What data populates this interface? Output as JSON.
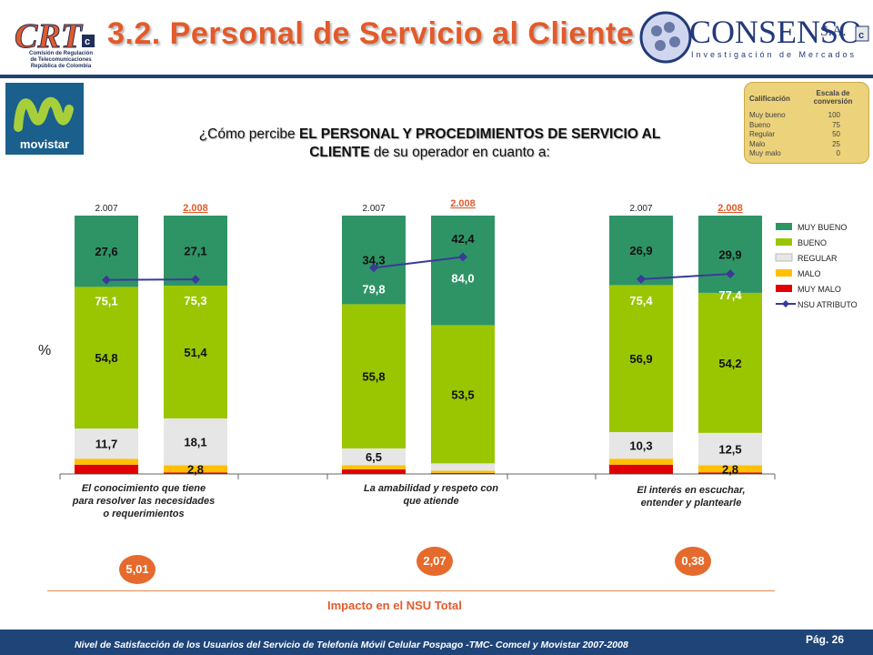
{
  "header": {
    "title": "3.2. Personal de Servicio al Cliente",
    "crt_logo_text": "CRT",
    "crt_subtitle": [
      "Comisión de Regulación",
      "de Telecomunicaciones",
      "República de Colombia"
    ],
    "consenso_name": "CONSENSO",
    "consenso_suffix": "S.A.",
    "consenso_tagline": "Investigación de Mercados",
    "movistar_label": "movistar"
  },
  "question": {
    "pre": "¿Cómo percibe ",
    "bold": "EL PERSONAL Y PROCEDIMIENTOS DE SERVICIO AL CLIENTE",
    "post": " de su operador en cuanto a:"
  },
  "scale": {
    "col1": "Calificación",
    "col2a": "Escala de",
    "col2b": "conversión",
    "rows": [
      {
        "label": "Muy bueno",
        "value": "100"
      },
      {
        "label": "Bueno",
        "value": "75"
      },
      {
        "label": "Regular",
        "value": "50"
      },
      {
        "label": "Malo",
        "value": "25"
      },
      {
        "label": "Muy malo",
        "value": "0"
      }
    ]
  },
  "chart_data": {
    "type": "bar",
    "stacked": true,
    "ylabel": "%",
    "ylim": [
      0,
      100
    ],
    "year_labels": [
      "2.007",
      "2.008"
    ],
    "groups": [
      {
        "name": "El conocimiento que tiene para resolver las necesidades o requerimientos",
        "label_lines": [
          "El conocimiento que tiene",
          "para resolver las necesidades",
          "o requerimientos"
        ],
        "bars": [
          {
            "year": "2.007",
            "muy_malo": 3.6,
            "malo": 2.3,
            "regular": 11.7,
            "bueno": 54.8,
            "muy_bueno": 27.6,
            "nsu": 75.1
          },
          {
            "year": "2.008",
            "muy_malo": 0.6,
            "malo": 2.8,
            "regular": 18.1,
            "bueno": 51.4,
            "muy_bueno": 27.1,
            "nsu": 75.3
          }
        ]
      },
      {
        "name": "La amabilidad y respeto con que atiende",
        "label_lines": [
          "La amabilidad y respeto con",
          "que atiende"
        ],
        "bars": [
          {
            "year": "2.007",
            "muy_malo": 1.8,
            "malo": 1.6,
            "regular": 6.5,
            "bueno": 55.8,
            "muy_bueno": 34.3,
            "nsu": 79.8
          },
          {
            "year": "2.008",
            "muy_malo": 0.4,
            "malo": 0.9,
            "regular": 2.8,
            "bueno": 53.5,
            "muy_bueno": 42.4,
            "nsu": 84.0
          }
        ]
      },
      {
        "name": "El interés en escuchar, entender y plantearle",
        "label_lines": [
          "El interés en escuchar,",
          "entender y plantearle"
        ],
        "bars": [
          {
            "year": "2.007",
            "muy_malo": 3.6,
            "malo": 2.3,
            "regular": 10.3,
            "bueno": 56.9,
            "muy_bueno": 26.9,
            "nsu": 75.4
          },
          {
            "year": "2.008",
            "muy_malo": 0.6,
            "malo": 2.8,
            "regular": 12.5,
            "bueno": 54.2,
            "muy_bueno": 29.9,
            "nsu": 77.4
          }
        ]
      }
    ],
    "labeled_segments": [
      "muy_bueno",
      "bueno",
      "regular",
      "malo"
    ],
    "label_thresholds": {
      "muy_bueno": 0,
      "bueno": 0,
      "regular": 5,
      "malo": 2.5
    },
    "series": [
      {
        "key": "muy_bueno",
        "name": "MUY BUENO",
        "color": "#2e9466"
      },
      {
        "key": "bueno",
        "name": "BUENO",
        "color": "#99c600"
      },
      {
        "key": "regular",
        "name": "REGULAR",
        "color": "#e6e6e6"
      },
      {
        "key": "malo",
        "name": "MALO",
        "color": "#ffc000"
      },
      {
        "key": "muy_malo",
        "name": "MUY MALO",
        "color": "#e00000"
      },
      {
        "key": "nsu",
        "name": "NSU ATRIBUTO",
        "color": "#3a3a9a"
      }
    ],
    "legend": "right"
  },
  "impact": {
    "values": [
      "5,01",
      "2,07",
      "0,38"
    ],
    "label": "Impacto en el NSU Total"
  },
  "footer": {
    "text": "Nivel de Satisfacción de los Usuarios del Servicio de Telefonía Móvil Celular Pospago -TMC- Comcel y Movistar 2007-2008",
    "page": "Pág. 26"
  }
}
